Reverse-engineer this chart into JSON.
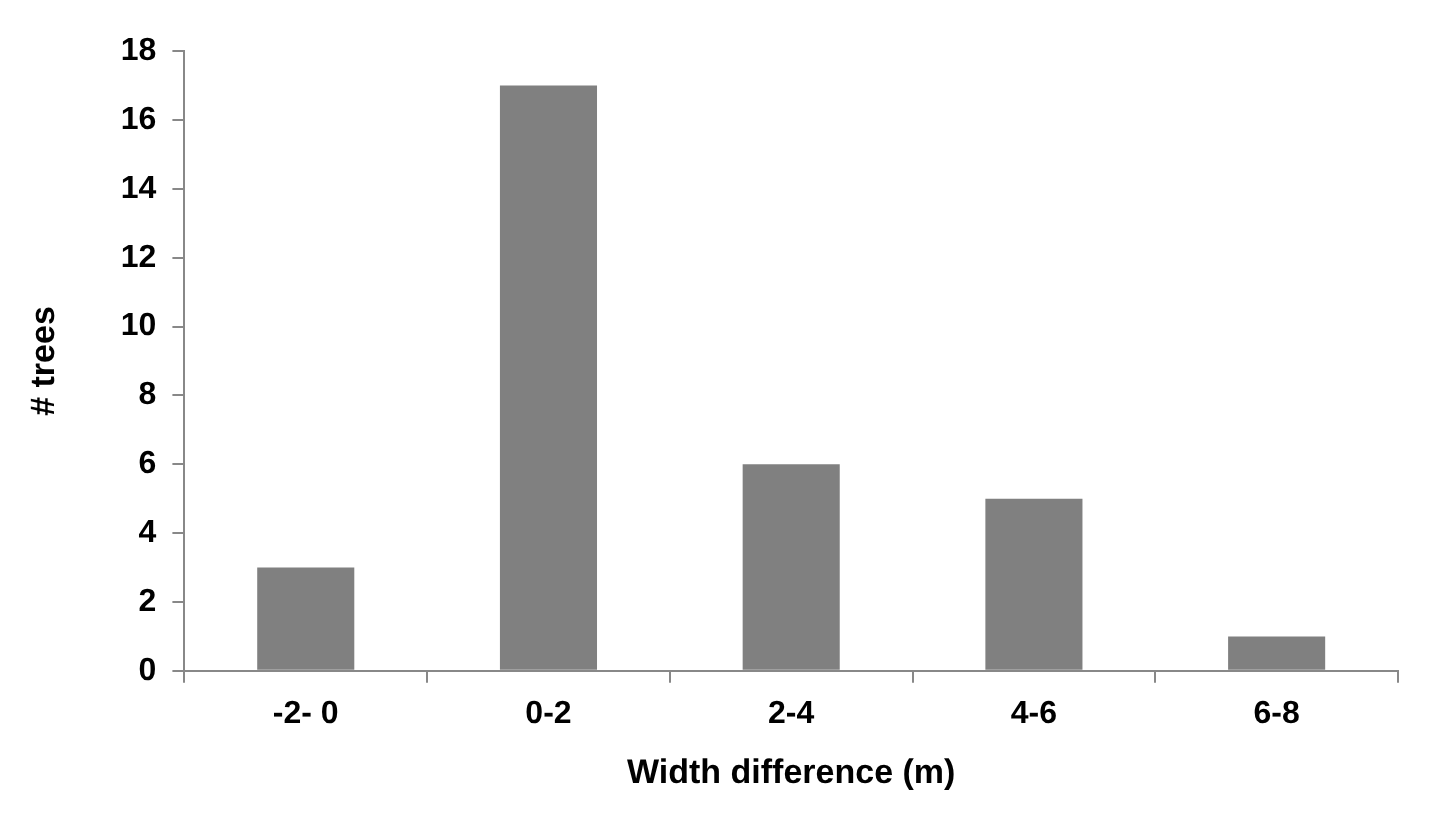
{
  "chart_data": {
    "type": "bar",
    "xlabel": "Width difference (m)",
    "ylabel": "# trees",
    "categories": [
      "-2- 0",
      "0-2",
      "2-4",
      "4-6",
      "6-8"
    ],
    "values": [
      3,
      17,
      6,
      5,
      1
    ],
    "color": "#808080",
    "ylim": [
      0,
      18
    ],
    "yticks": [
      0,
      2,
      4,
      6,
      8,
      10,
      12,
      14,
      16,
      18
    ],
    "grid": false,
    "legend": false
  }
}
